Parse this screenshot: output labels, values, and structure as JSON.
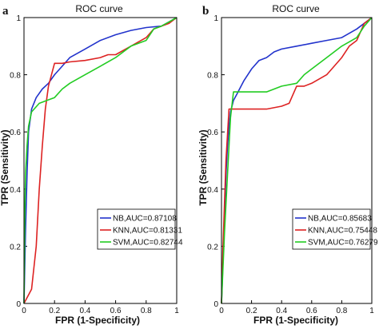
{
  "chart_data": [
    {
      "panel": "a",
      "type": "line",
      "title": "ROC curve",
      "xlabel": "FPR (1-Specificity)",
      "ylabel": "TPR (Sensitivity)",
      "xlim": [
        0,
        1
      ],
      "ylim": [
        0,
        1
      ],
      "xticks": [
        "0",
        "0.2",
        "0.4",
        "0.6",
        "0.8",
        "1"
      ],
      "yticks": [
        "0",
        "0.2",
        "0.4",
        "0.6",
        "0.8",
        "1"
      ],
      "grid": false,
      "legend_position": "bottom-right",
      "series": [
        {
          "name": "NB,AUC=0.87108",
          "color": "#2233cc",
          "x": [
            0,
            0.01,
            0.02,
            0.03,
            0.05,
            0.08,
            0.12,
            0.16,
            0.2,
            0.25,
            0.3,
            0.4,
            0.5,
            0.6,
            0.7,
            0.8,
            0.9,
            0.95,
            1
          ],
          "y": [
            0,
            0.25,
            0.45,
            0.6,
            0.68,
            0.72,
            0.75,
            0.77,
            0.8,
            0.83,
            0.86,
            0.89,
            0.92,
            0.94,
            0.955,
            0.965,
            0.97,
            0.985,
            1
          ]
        },
        {
          "name": "KNN,AUC=0.81331",
          "color": "#dd2222",
          "x": [
            0,
            0.05,
            0.08,
            0.1,
            0.12,
            0.14,
            0.16,
            0.18,
            0.2,
            0.25,
            0.3,
            0.4,
            0.5,
            0.55,
            0.6,
            0.7,
            0.8,
            0.85,
            0.9,
            0.95,
            1
          ],
          "y": [
            0,
            0.05,
            0.2,
            0.4,
            0.55,
            0.68,
            0.76,
            0.8,
            0.84,
            0.84,
            0.845,
            0.85,
            0.86,
            0.87,
            0.87,
            0.9,
            0.93,
            0.96,
            0.97,
            0.98,
            1
          ]
        },
        {
          "name": "SVM,AUC=0.82744",
          "color": "#22cc22",
          "x": [
            0,
            0.005,
            0.01,
            0.02,
            0.03,
            0.05,
            0.1,
            0.15,
            0.2,
            0.25,
            0.3,
            0.4,
            0.5,
            0.6,
            0.7,
            0.8,
            0.85,
            0.9,
            0.95,
            1
          ],
          "y": [
            0,
            0.3,
            0.45,
            0.55,
            0.62,
            0.67,
            0.7,
            0.71,
            0.72,
            0.75,
            0.77,
            0.8,
            0.83,
            0.86,
            0.9,
            0.92,
            0.96,
            0.97,
            0.985,
            1
          ]
        }
      ]
    },
    {
      "panel": "b",
      "type": "line",
      "title": "ROC curve",
      "xlabel": "FPR (1-Specificity)",
      "ylabel": "TPR (Sensitivity)",
      "xlim": [
        0,
        1
      ],
      "ylim": [
        0,
        1
      ],
      "xticks": [
        "0",
        "0.2",
        "0.4",
        "0.6",
        "0.8",
        "1"
      ],
      "yticks": [
        "0",
        "0.2",
        "0.4",
        "0.6",
        "0.8",
        "1"
      ],
      "grid": false,
      "legend_position": "bottom-right",
      "series": [
        {
          "name": "NB,AUC=0.85683",
          "color": "#2233cc",
          "x": [
            0,
            0.01,
            0.02,
            0.03,
            0.04,
            0.05,
            0.06,
            0.08,
            0.1,
            0.15,
            0.2,
            0.25,
            0.3,
            0.35,
            0.4,
            0.5,
            0.6,
            0.7,
            0.8,
            0.9,
            0.95,
            1
          ],
          "y": [
            0,
            0.15,
            0.3,
            0.45,
            0.55,
            0.62,
            0.67,
            0.71,
            0.73,
            0.78,
            0.82,
            0.85,
            0.86,
            0.88,
            0.89,
            0.9,
            0.91,
            0.92,
            0.93,
            0.96,
            0.98,
            1
          ]
        },
        {
          "name": "KNN,AUC=0.75448",
          "color": "#dd2222",
          "x": [
            0,
            0.01,
            0.03,
            0.05,
            0.07,
            0.1,
            0.15,
            0.2,
            0.3,
            0.4,
            0.45,
            0.5,
            0.55,
            0.6,
            0.7,
            0.8,
            0.85,
            0.9,
            0.95,
            1
          ],
          "y": [
            0,
            0.2,
            0.5,
            0.68,
            0.68,
            0.68,
            0.68,
            0.68,
            0.68,
            0.69,
            0.7,
            0.76,
            0.76,
            0.77,
            0.8,
            0.86,
            0.9,
            0.92,
            0.98,
            1
          ]
        },
        {
          "name": "SVM,AUC=0.76279",
          "color": "#22cc22",
          "x": [
            0,
            0.02,
            0.04,
            0.06,
            0.08,
            0.1,
            0.2,
            0.3,
            0.35,
            0.4,
            0.5,
            0.55,
            0.6,
            0.7,
            0.8,
            0.9,
            0.95,
            1
          ],
          "y": [
            0,
            0.25,
            0.45,
            0.65,
            0.74,
            0.74,
            0.74,
            0.74,
            0.75,
            0.76,
            0.77,
            0.8,
            0.82,
            0.86,
            0.9,
            0.93,
            0.97,
            1
          ]
        }
      ]
    }
  ]
}
